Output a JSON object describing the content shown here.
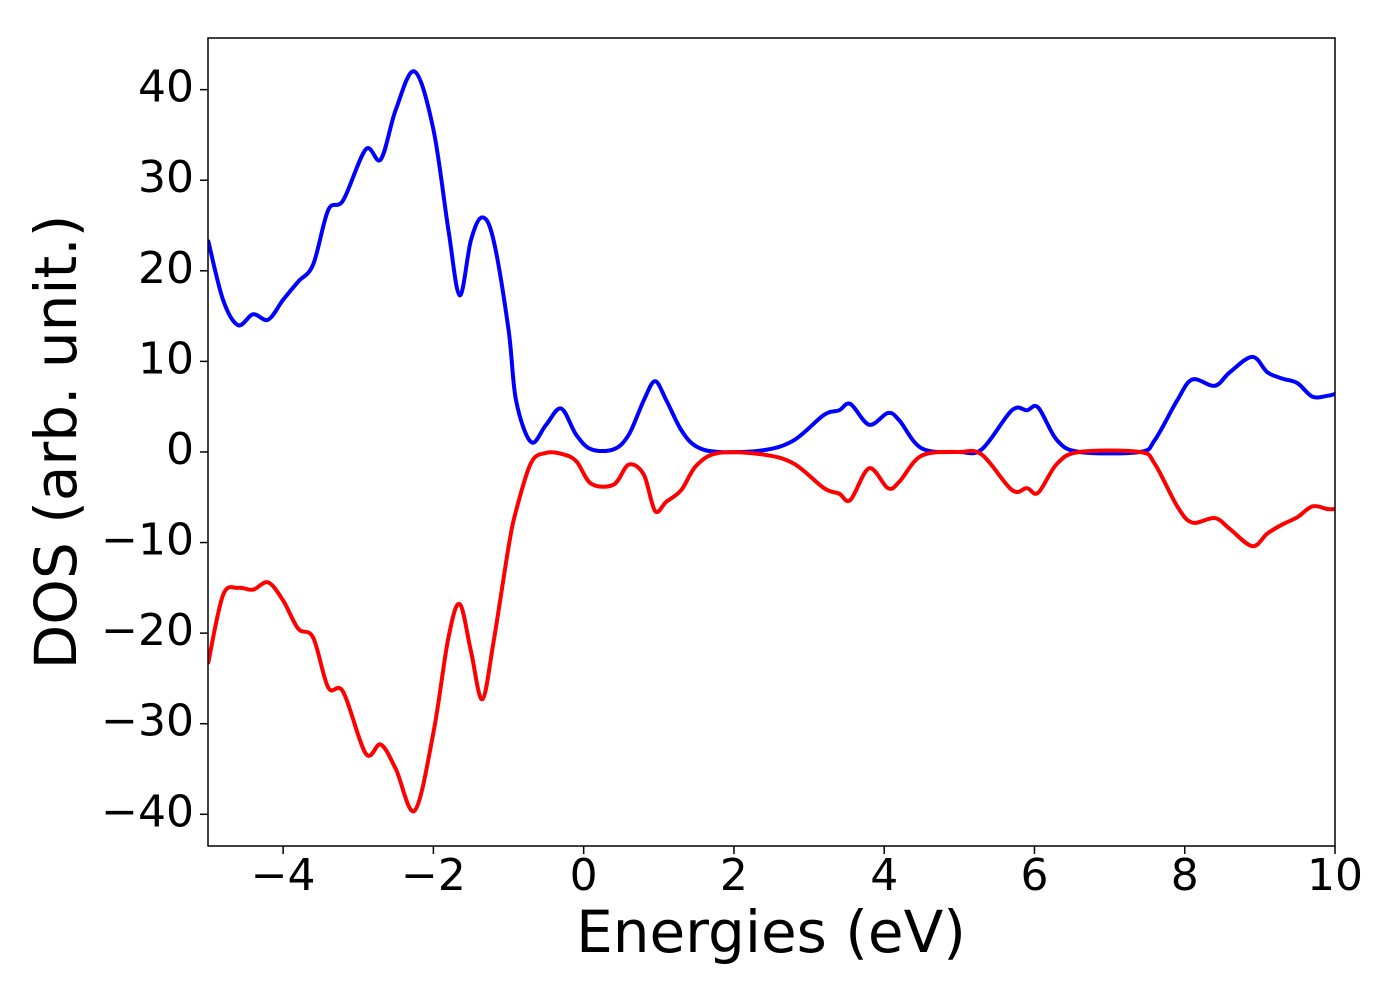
{
  "chart_data": {
    "type": "line",
    "xlabel": "Energies (eV)",
    "ylabel": "DOS (arb. unit.)",
    "x": [
      -5,
      -4.8,
      -4.6,
      -4.4,
      -4.2,
      -4.0,
      -3.8,
      -3.6,
      -3.4,
      -3.2,
      -2.9,
      -2.7,
      -2.5,
      -2.25,
      -2.0,
      -1.8,
      -1.65,
      -1.5,
      -1.35,
      -1.2,
      -1.0,
      -0.9,
      -0.7,
      -0.5,
      -0.3,
      -0.1,
      0.1,
      0.4,
      0.6,
      0.8,
      0.95,
      1.1,
      1.3,
      1.5,
      1.8,
      2.4,
      2.8,
      3.2,
      3.4,
      3.55,
      3.8,
      4.05,
      4.2,
      4.5,
      5.0,
      5.3,
      5.7,
      5.9,
      6.05,
      6.3,
      6.6,
      7.4,
      7.6,
      7.9,
      8.1,
      8.4,
      8.6,
      8.9,
      9.1,
      9.3,
      9.5,
      9.7,
      9.9,
      10
    ],
    "series": [
      {
        "color": "#0000ff",
        "values": [
          23.4,
          16.8,
          14.0,
          15.2,
          14.6,
          16.8,
          18.8,
          20.7,
          26.7,
          27.8,
          33.4,
          32.3,
          37.8,
          42.0,
          35.6,
          24.5,
          17.3,
          23.4,
          25.9,
          23.4,
          13.5,
          5.7,
          1.1,
          3.0,
          4.8,
          1.9,
          0.3,
          0.3,
          1.9,
          5.7,
          7.8,
          5.7,
          2.4,
          0.6,
          0,
          0.2,
          1.3,
          4.1,
          4.6,
          5.3,
          3.0,
          4.3,
          3.5,
          0.4,
          0,
          0.3,
          4.6,
          4.6,
          4.9,
          1.3,
          0,
          0,
          1.3,
          5.7,
          8.0,
          7.3,
          8.8,
          10.5,
          8.8,
          8.1,
          7.6,
          6.1,
          6.2,
          6.4
        ]
      },
      {
        "color": "#ff0000",
        "values": [
          -23.4,
          -15.8,
          -15.0,
          -15.2,
          -14.4,
          -16.4,
          -19.5,
          -20.5,
          -26.0,
          -26.5,
          -33.3,
          -32.3,
          -35.0,
          -39.6,
          -31.0,
          -20.5,
          -16.8,
          -22.0,
          -27.3,
          -21.0,
          -10.5,
          -6.5,
          -1.2,
          -0.1,
          -0.2,
          -1.0,
          -3.5,
          -3.6,
          -1.4,
          -2.5,
          -6.5,
          -5.5,
          -4.2,
          -1.5,
          -0.1,
          -0.3,
          -1.3,
          -4.0,
          -4.6,
          -5.3,
          -1.8,
          -4.0,
          -3.3,
          -0.4,
          0,
          -0.3,
          -4.2,
          -4.0,
          -4.5,
          -1.3,
          0,
          0,
          -1.3,
          -6.0,
          -7.8,
          -7.3,
          -8.5,
          -10.4,
          -9.0,
          -8.0,
          -7.2,
          -6.0,
          -6.3,
          -6.3
        ]
      }
    ],
    "xlim": [
      -5,
      10
    ],
    "xticks": [
      {
        "value": -4,
        "label": "−4"
      },
      {
        "value": -2,
        "label": "−2"
      },
      0,
      2,
      4,
      6,
      8,
      10
    ],
    "ylim": [
      -43.5,
      45.7
    ],
    "yticks": [
      {
        "value": -40,
        "label": "−40"
      },
      {
        "value": -30,
        "label": "−30"
      },
      {
        "value": -20,
        "label": "−20"
      },
      {
        "value": -10,
        "label": "−10"
      },
      0,
      10,
      20,
      30,
      40
    ],
    "grid": false
  }
}
